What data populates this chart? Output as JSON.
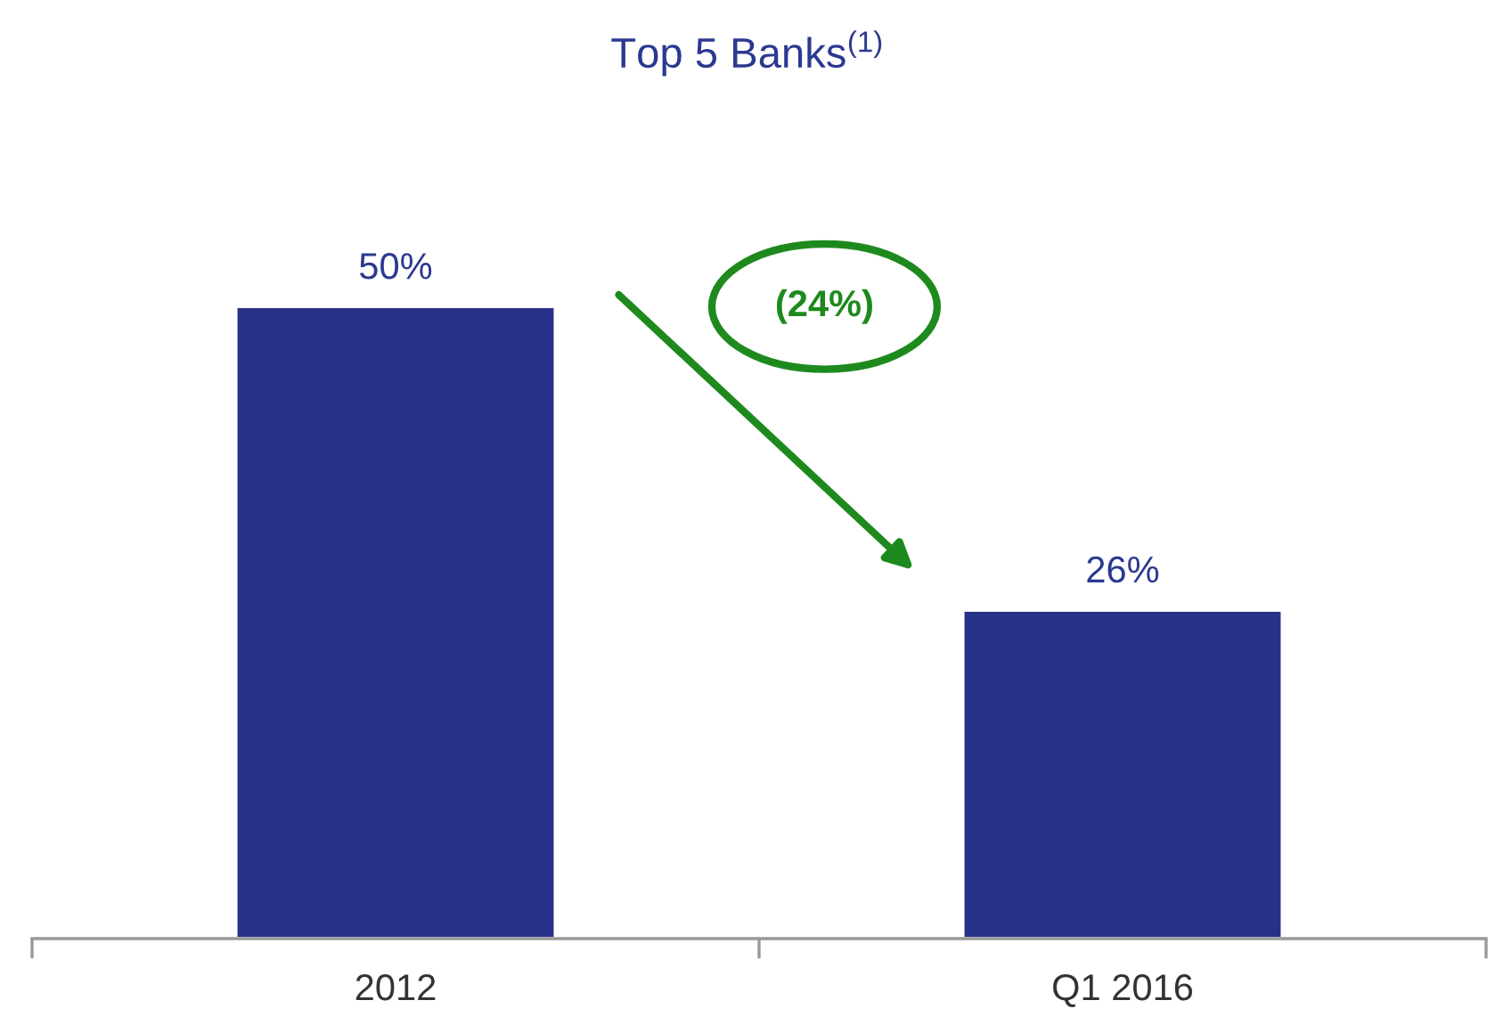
{
  "chart_data": {
    "type": "bar",
    "title": "Top 5 Banks$^{(1)}$",
    "categories": [
      "2012",
      "Q1 2016"
    ],
    "values": [
      50,
      26
    ],
    "value_labels": [
      "50%",
      "26%"
    ],
    "color": "#283189",
    "annotations": [
      "(24%)"
    ],
    "grid": false,
    "legend": false
  }
}
